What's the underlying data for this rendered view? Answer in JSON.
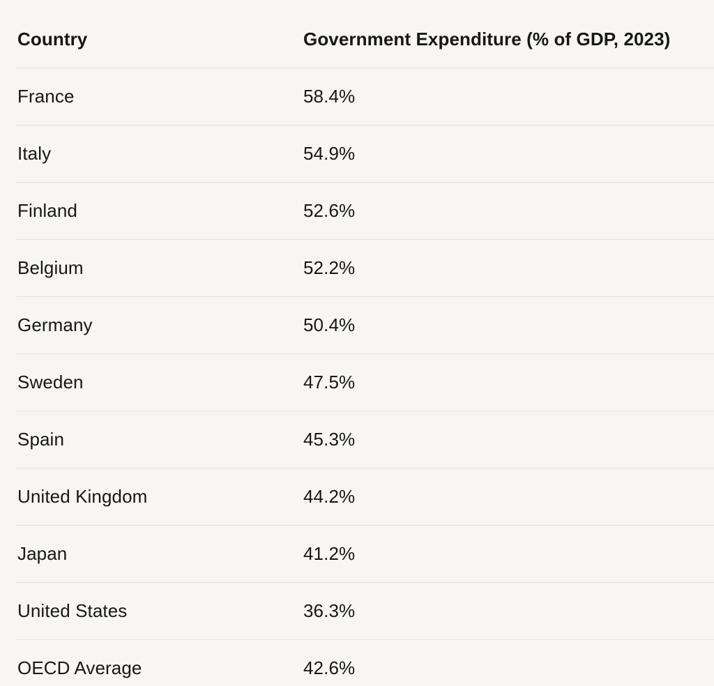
{
  "table": {
    "columns": [
      "Country",
      "Government Expenditure (% of GDP, 2023)"
    ],
    "rows": [
      [
        "France",
        "58.4%"
      ],
      [
        "Italy",
        "54.9%"
      ],
      [
        "Finland",
        "52.6%"
      ],
      [
        "Belgium",
        "52.2%"
      ],
      [
        "Germany",
        "50.4%"
      ],
      [
        "Sweden",
        "47.5%"
      ],
      [
        "Spain",
        "45.3%"
      ],
      [
        "United Kingdom",
        "44.2%"
      ],
      [
        "Japan",
        "41.2%"
      ],
      [
        "United States",
        "36.3%"
      ],
      [
        "OECD Average",
        "42.6%"
      ]
    ]
  },
  "chart_data": {
    "type": "table",
    "title": "Government Expenditure (% of GDP, 2023)",
    "columns": [
      "Country",
      "Government Expenditure (% of GDP, 2023)"
    ],
    "categories": [
      "France",
      "Italy",
      "Finland",
      "Belgium",
      "Germany",
      "Sweden",
      "Spain",
      "United Kingdom",
      "Japan",
      "United States",
      "OECD Average"
    ],
    "values": [
      58.4,
      54.9,
      52.6,
      52.2,
      50.4,
      47.5,
      45.3,
      44.2,
      41.2,
      36.3,
      42.6
    ],
    "value_unit": "% of GDP",
    "year": "2023"
  },
  "colors": {
    "background": "#f7f6f4",
    "divider": "#e3e2df",
    "text": "#171716"
  }
}
